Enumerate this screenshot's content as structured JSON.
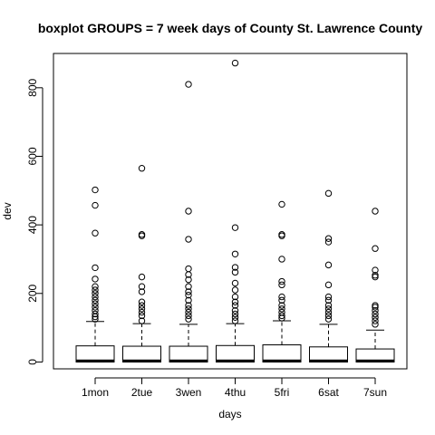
{
  "chart_data": {
    "type": "boxplot",
    "title": "boxplot GROUPS = 7 week days of County St. Lawrence County",
    "xlabel": "days",
    "ylabel": "dev",
    "ylim": [
      -20,
      900
    ],
    "y_ticks": [
      0,
      200,
      400,
      600,
      800
    ],
    "grid": false,
    "categories": [
      "1mon",
      "2tue",
      "3wen",
      "4thu",
      "5fri",
      "6sat",
      "7sun"
    ],
    "boxes": [
      {
        "category": "1mon",
        "lower_whisker": 0,
        "q1": 0,
        "median": 3,
        "q3": 47,
        "upper_whisker": 118,
        "outliers": [
          502,
          457,
          376,
          275,
          242,
          220,
          210,
          200,
          190,
          180,
          170,
          160,
          150,
          140,
          132,
          125
        ]
      },
      {
        "category": "2tue",
        "lower_whisker": 0,
        "q1": 0,
        "median": 3,
        "q3": 46,
        "upper_whisker": 112,
        "outliers": [
          565,
          372,
          368,
          248,
          220,
          205,
          175,
          165,
          155,
          145,
          135,
          120
        ]
      },
      {
        "category": "3wen",
        "lower_whisker": 0,
        "q1": 0,
        "median": 3,
        "q3": 46,
        "upper_whisker": 110,
        "outliers": [
          810,
          440,
          358,
          272,
          255,
          240,
          220,
          205,
          195,
          180,
          165,
          155,
          145,
          135,
          125
        ]
      },
      {
        "category": "4thu",
        "lower_whisker": 0,
        "q1": 0,
        "median": 3,
        "q3": 48,
        "upper_whisker": 112,
        "outliers": [
          872,
          392,
          315,
          276,
          262,
          230,
          210,
          190,
          175,
          165,
          150,
          140,
          130,
          120
        ]
      },
      {
        "category": "5fri",
        "lower_whisker": 0,
        "q1": 0,
        "median": 3,
        "q3": 50,
        "upper_whisker": 120,
        "outliers": [
          460,
          372,
          368,
          300,
          235,
          225,
          190,
          180,
          165,
          155,
          145,
          135,
          128
        ]
      },
      {
        "category": "6sat",
        "lower_whisker": 0,
        "q1": 0,
        "median": 3,
        "q3": 44,
        "upper_whisker": 110,
        "outliers": [
          492,
          360,
          350,
          283,
          225,
          190,
          180,
          165,
          155,
          145,
          135,
          125
        ]
      },
      {
        "category": "7sun",
        "lower_whisker": 0,
        "q1": 0,
        "median": 3,
        "q3": 38,
        "upper_whisker": 93,
        "outliers": [
          440,
          331,
          268,
          253,
          248,
          165,
          160,
          150,
          140,
          130,
          120,
          110
        ]
      }
    ]
  }
}
